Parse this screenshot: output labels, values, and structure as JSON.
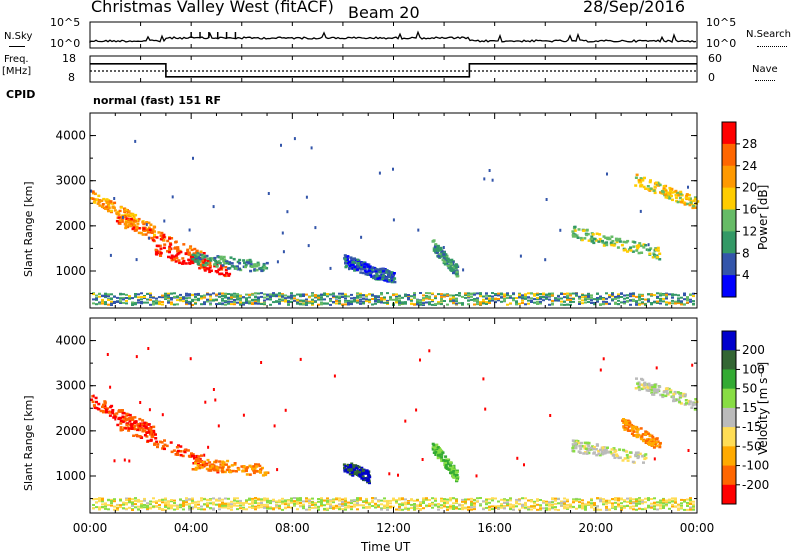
{
  "header": {
    "title": "Christmas Valley West (fitACF)",
    "beam": "Beam 20",
    "date": "28/Sep/2016"
  },
  "panel_nsky": {
    "left_label": "N.Sky",
    "right_label": "N.Search",
    "left_ticks": [
      "10^5",
      "10^0"
    ],
    "right_ticks": [
      "10^5",
      "10^0"
    ]
  },
  "panel_freq": {
    "left_label_1": "Freq.",
    "left_label_2": "[MHz]",
    "right_label": "Nave",
    "left_ticks": [
      "18",
      "8"
    ],
    "right_ticks": [
      "60",
      "0"
    ],
    "cpid_label": "CPID",
    "cpid_value": "normal (fast) 151 RF"
  },
  "x_axis": {
    "label": "Time UT",
    "ticks": [
      "00:00",
      "04:00",
      "08:00",
      "12:00",
      "16:00",
      "20:00",
      "00:00"
    ]
  },
  "colorbars": {
    "power": {
      "label": "Power [dB]",
      "ticks": [
        "28",
        "24",
        "20",
        "16",
        "12",
        "8",
        "4"
      ],
      "colors": [
        "#ff0000",
        "#ff6600",
        "#ff9900",
        "#ffcc00",
        "#66bb66",
        "#339966",
        "#3355aa",
        "#0000ff"
      ]
    },
    "velocity": {
      "label": "Velocity [m s⁻¹]",
      "ticks": [
        "200",
        "100",
        "50",
        "15",
        "-15",
        "-50",
        "-100",
        "-200"
      ],
      "colors": [
        "#0000cc",
        "#336633",
        "#33aa33",
        "#88dd44",
        "#bbbbbb",
        "#ffdd55",
        "#ffaa00",
        "#ff6600",
        "#ff0000"
      ]
    }
  },
  "chart_data": [
    {
      "type": "heatmap",
      "parameter": "Power",
      "ylabel": "Slant Range [km]",
      "xlabel": "Time UT",
      "ylim": [
        180,
        4500
      ],
      "xlim_hours": [
        0,
        24
      ],
      "yticks": [
        "4000",
        "3000",
        "2000",
        "1000"
      ],
      "ytick_values": [
        4000,
        3000,
        2000,
        1000
      ],
      "features": [
        {
          "t_start": 0.0,
          "t_end": 2.5,
          "r_start": 2700,
          "r_end": 1900,
          "level": 20
        },
        {
          "t_start": 1.0,
          "t_end": 4.5,
          "r_start": 2200,
          "r_end": 1300,
          "level": 24
        },
        {
          "t_start": 2.5,
          "t_end": 5.5,
          "r_start": 1500,
          "r_end": 1000,
          "level": 28
        },
        {
          "t_start": 4.0,
          "t_end": 7.0,
          "r_start": 1300,
          "r_end": 1100,
          "level": 8
        },
        {
          "t_start": 10.0,
          "t_end": 11.0,
          "r_start": 1250,
          "r_end": 1050,
          "level": 4
        },
        {
          "t_start": 11.0,
          "t_end": 12.0,
          "r_start": 1000,
          "r_end": 900,
          "level": 4
        },
        {
          "t_start": 13.5,
          "t_end": 14.5,
          "r_start": 1600,
          "r_end": 1000,
          "level": 8
        },
        {
          "t_start": 19.0,
          "t_end": 22.5,
          "r_start": 1900,
          "r_end": 1400,
          "level": 12
        },
        {
          "t_start": 21.5,
          "t_end": 24.0,
          "r_start": 3050,
          "r_end": 2500,
          "level": 16
        }
      ]
    },
    {
      "type": "heatmap",
      "parameter": "Velocity",
      "ylabel": "Slant Range [km]",
      "xlabel": "Time UT",
      "ylim": [
        180,
        4500
      ],
      "xlim_hours": [
        0,
        24
      ],
      "yticks": [
        "4000",
        "3000",
        "2000",
        "1000"
      ],
      "ytick_values": [
        4000,
        3000,
        2000,
        1000
      ],
      "features": [
        {
          "t_start": 0.0,
          "t_end": 2.5,
          "r_start": 2700,
          "r_end": 2000,
          "level": -200
        },
        {
          "t_start": 1.0,
          "t_end": 5.0,
          "r_start": 2200,
          "r_end": 1200,
          "level": -200
        },
        {
          "t_start": 4.0,
          "t_end": 7.0,
          "r_start": 1300,
          "r_end": 1150,
          "level": -100
        },
        {
          "t_start": 10.0,
          "t_end": 11.0,
          "r_start": 1250,
          "r_end": 1000,
          "level": 200
        },
        {
          "t_start": 13.5,
          "t_end": 14.5,
          "r_start": 1700,
          "r_end": 1000,
          "level": 50
        },
        {
          "t_start": 19.0,
          "t_end": 22.0,
          "r_start": 1700,
          "r_end": 1400,
          "level": 0
        },
        {
          "t_start": 21.0,
          "t_end": 22.5,
          "r_start": 2200,
          "r_end": 1700,
          "level": -100
        },
        {
          "t_start": 21.5,
          "t_end": 24.0,
          "r_start": 3100,
          "r_end": 2600,
          "level": 0
        }
      ]
    },
    {
      "type": "line",
      "parameter": "Frequency",
      "ylabel": "Freq. [MHz]",
      "ylim": [
        8,
        18
      ],
      "x_hours": [
        0,
        3.0,
        3.0,
        15.0,
        15.0,
        24
      ],
      "values": [
        15,
        15,
        10,
        10,
        15,
        15
      ]
    }
  ]
}
